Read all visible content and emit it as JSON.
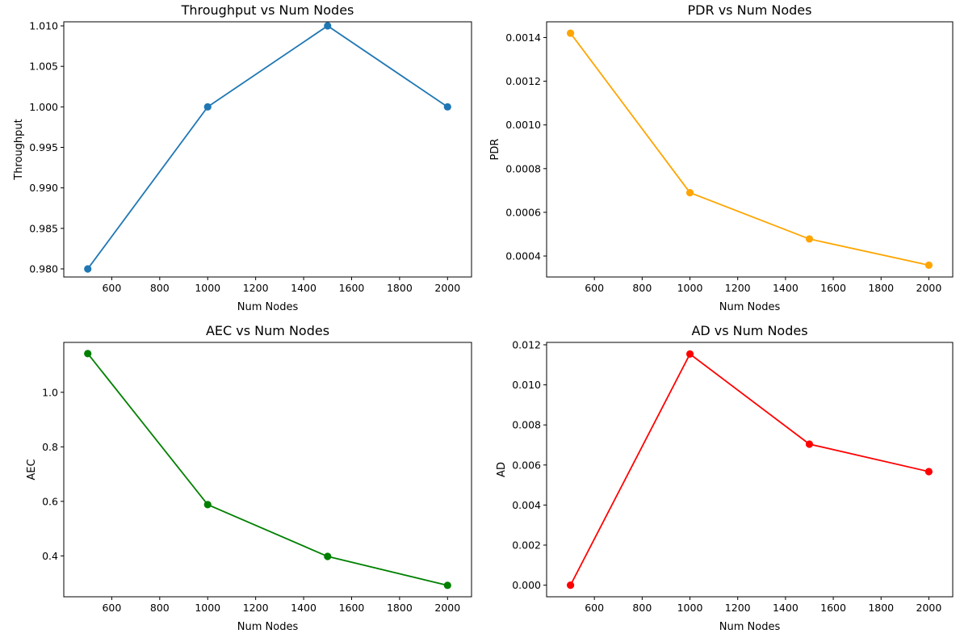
{
  "chart_data": [
    {
      "type": "line",
      "title": "Throughput vs Num Nodes",
      "xlabel": "Num Nodes",
      "ylabel": "Throughput",
      "x": [
        500,
        1000,
        1500,
        2000
      ],
      "series": [
        {
          "values": [
            0.98,
            1.0,
            1.01,
            1.0
          ],
          "color": "#1f77b4"
        }
      ],
      "xlim": [
        400,
        2100
      ],
      "ylim": [
        0.979,
        1.0105
      ],
      "xticks": [
        600,
        800,
        1000,
        1200,
        1400,
        1600,
        1800,
        2000
      ],
      "xtick_labels": [
        "600",
        "800",
        "1000",
        "1200",
        "1400",
        "1600",
        "1800",
        "2000"
      ],
      "yticks": [
        0.98,
        0.985,
        0.99,
        0.995,
        1.0,
        1.005,
        1.01
      ],
      "ytick_labels": [
        "0.980",
        "0.985",
        "0.990",
        "0.995",
        "1.000",
        "1.005",
        "1.010"
      ],
      "grid": false
    },
    {
      "type": "line",
      "title": "PDR vs Num Nodes",
      "xlabel": "Num Nodes",
      "ylabel": "PDR",
      "x": [
        500,
        1000,
        1500,
        2000
      ],
      "series": [
        {
          "values": [
            0.00142,
            0.00069,
            0.000478,
            0.000358
          ],
          "color": "#ffa500"
        }
      ],
      "xlim": [
        400,
        2100
      ],
      "ylim": [
        0.000304,
        0.001472
      ],
      "xticks": [
        600,
        800,
        1000,
        1200,
        1400,
        1600,
        1800,
        2000
      ],
      "xtick_labels": [
        "600",
        "800",
        "1000",
        "1200",
        "1400",
        "1600",
        "1800",
        "2000"
      ],
      "yticks": [
        0.0004,
        0.0006,
        0.0008,
        0.001,
        0.0012,
        0.0014
      ],
      "ytick_labels": [
        "0.0004",
        "0.0006",
        "0.0008",
        "0.0010",
        "0.0012",
        "0.0014"
      ],
      "grid": false
    },
    {
      "type": "line",
      "title": "AEC vs Num Nodes",
      "xlabel": "Num Nodes",
      "ylabel": "AEC",
      "x": [
        500,
        1000,
        1500,
        2000
      ],
      "series": [
        {
          "values": [
            1.142,
            0.588,
            0.398,
            0.292
          ],
          "color": "#008000"
        }
      ],
      "xlim": [
        400,
        2100
      ],
      "ylim": [
        0.25,
        1.183
      ],
      "xticks": [
        600,
        800,
        1000,
        1200,
        1400,
        1600,
        1800,
        2000
      ],
      "xtick_labels": [
        "600",
        "800",
        "1000",
        "1200",
        "1400",
        "1600",
        "1800",
        "2000"
      ],
      "yticks": [
        0.4,
        0.6,
        0.8,
        1.0
      ],
      "ytick_labels": [
        "0.4",
        "0.6",
        "0.8",
        "1.0"
      ],
      "grid": false
    },
    {
      "type": "line",
      "title": "AD vs Num Nodes",
      "xlabel": "Num Nodes",
      "ylabel": "AD",
      "x": [
        500,
        1000,
        1500,
        2000
      ],
      "series": [
        {
          "values": [
            0.0,
            0.01154,
            0.00704,
            0.00567
          ],
          "color": "#ff0000"
        }
      ],
      "xlim": [
        400,
        2100
      ],
      "ylim": [
        -0.00058,
        0.01212
      ],
      "xticks": [
        600,
        800,
        1000,
        1200,
        1400,
        1600,
        1800,
        2000
      ],
      "xtick_labels": [
        "600",
        "800",
        "1000",
        "1200",
        "1400",
        "1600",
        "1800",
        "2000"
      ],
      "yticks": [
        0.0,
        0.002,
        0.004,
        0.006,
        0.008,
        0.01,
        0.012
      ],
      "ytick_labels": [
        "0.000",
        "0.002",
        "0.004",
        "0.006",
        "0.008",
        "0.010",
        "0.012"
      ],
      "grid": false
    }
  ]
}
